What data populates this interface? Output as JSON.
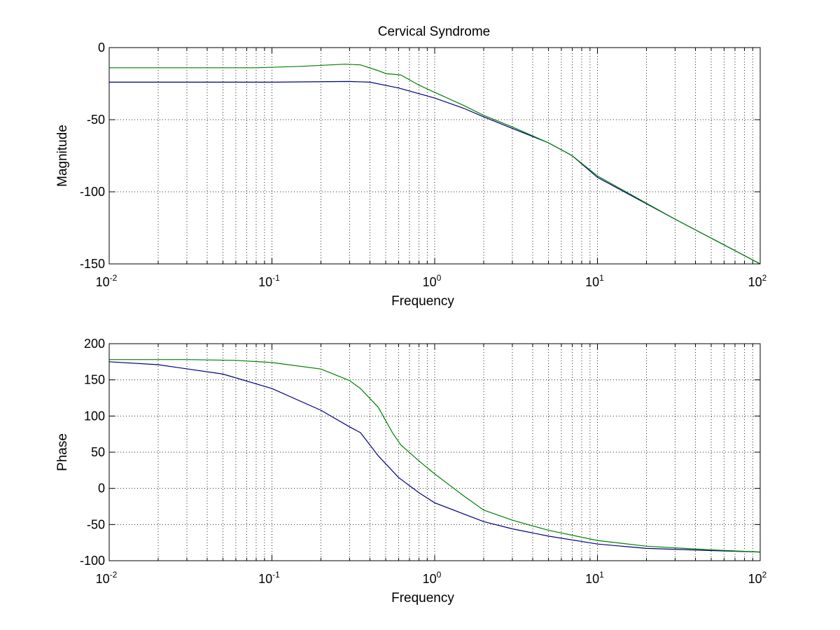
{
  "chart_data": [
    {
      "type": "line",
      "title": "Cervical Syndrome",
      "xlabel": "Frequency",
      "ylabel": "Magnitude",
      "xscale": "log",
      "xlim": [
        0.01,
        100
      ],
      "ylim": [
        -150,
        0
      ],
      "yticks": [
        0,
        -50,
        -100,
        -150
      ],
      "xticks": [
        {
          "base": "10",
          "exp": "-2"
        },
        {
          "base": "10",
          "exp": "-1"
        },
        {
          "base": "10",
          "exp": "0"
        },
        {
          "base": "10",
          "exp": "1"
        },
        {
          "base": "10",
          "exp": "2"
        }
      ],
      "grid": true,
      "series": [
        {
          "color": "#000080",
          "x": [
            0.01,
            0.1,
            0.3,
            0.4,
            0.6,
            1,
            1.5,
            2,
            3,
            5,
            7,
            10,
            30,
            100
          ],
          "y": [
            -24,
            -24,
            -23.5,
            -24,
            -28,
            -35,
            -42,
            -48,
            -56,
            -66,
            -75,
            -90,
            -119,
            -150
          ]
        },
        {
          "color": "#008000",
          "x": [
            0.01,
            0.08,
            0.15,
            0.28,
            0.35,
            0.45,
            0.5,
            0.62,
            0.8,
            1,
            1.5,
            2,
            3,
            5,
            7,
            10,
            30,
            100
          ],
          "y": [
            -14,
            -14,
            -13,
            -11.5,
            -12,
            -16,
            -18,
            -19,
            -26,
            -31,
            -40,
            -47,
            -55,
            -66,
            -75,
            -89,
            -119,
            -150
          ]
        }
      ]
    },
    {
      "type": "line",
      "title": "",
      "xlabel": "Frequency",
      "ylabel": "Phase",
      "xscale": "log",
      "xlim": [
        0.01,
        100
      ],
      "ylim": [
        -100,
        200
      ],
      "yticks": [
        200,
        150,
        100,
        50,
        0,
        -50,
        -100
      ],
      "xticks": [
        {
          "base": "10",
          "exp": "-2"
        },
        {
          "base": "10",
          "exp": "-1"
        },
        {
          "base": "10",
          "exp": "0"
        },
        {
          "base": "10",
          "exp": "1"
        },
        {
          "base": "10",
          "exp": "2"
        }
      ],
      "grid": true,
      "series": [
        {
          "color": "#000080",
          "x": [
            0.01,
            0.02,
            0.05,
            0.1,
            0.2,
            0.3,
            0.35,
            0.45,
            0.6,
            0.8,
            1,
            2,
            3,
            5,
            10,
            20,
            50,
            100
          ],
          "y": [
            175,
            171,
            158,
            138,
            108,
            85,
            77,
            45,
            15,
            -6,
            -20,
            -46,
            -56,
            -66,
            -77,
            -83,
            -86,
            -88
          ]
        },
        {
          "color": "#008000",
          "x": [
            0.01,
            0.03,
            0.06,
            0.1,
            0.2,
            0.3,
            0.35,
            0.45,
            0.55,
            0.62,
            0.8,
            1,
            1.5,
            2,
            3,
            5,
            10,
            20,
            50,
            100
          ],
          "y": [
            178,
            178,
            177,
            174,
            165,
            149,
            138,
            112,
            77,
            60,
            38,
            20,
            -10,
            -30,
            -44,
            -58,
            -72,
            -80,
            -85,
            -88
          ]
        }
      ]
    }
  ]
}
